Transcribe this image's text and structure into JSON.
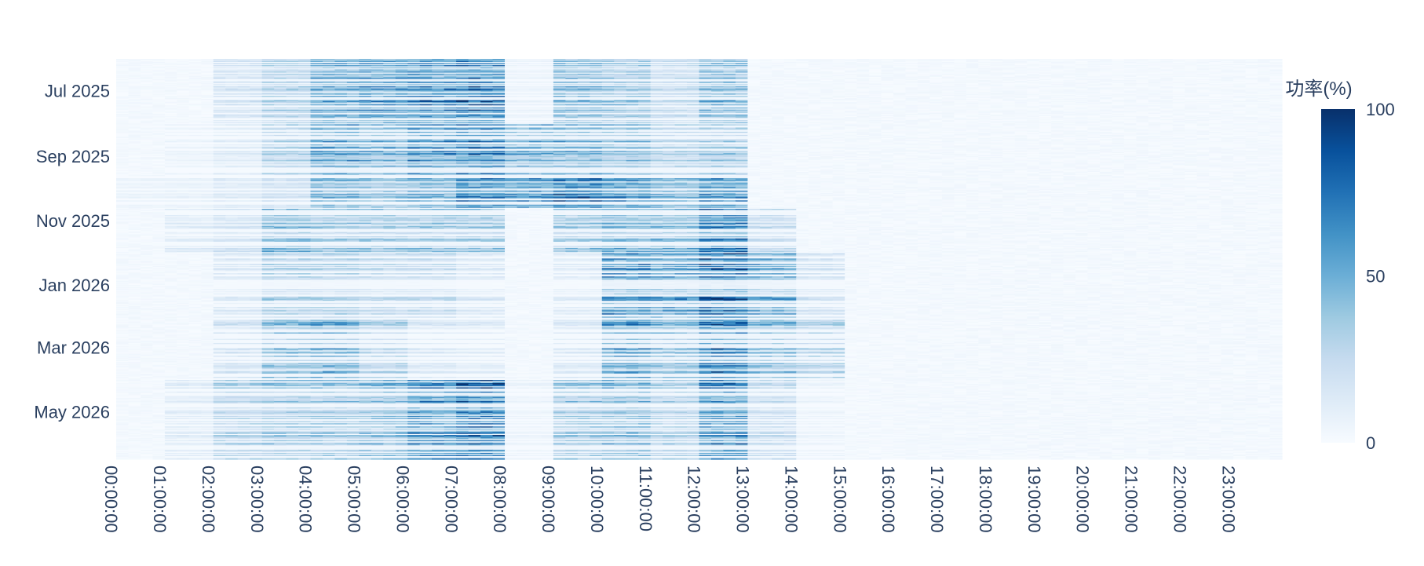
{
  "chart_data": {
    "type": "heatmap",
    "title": "",
    "xlabel": "",
    "ylabel": "",
    "x_ticks": [
      "00:00:00",
      "01:00:00",
      "02:00:00",
      "03:00:00",
      "04:00:00",
      "05:00:00",
      "06:00:00",
      "07:00:00",
      "08:00:00",
      "09:00:00",
      "10:00:00",
      "11:00:00",
      "12:00:00",
      "13:00:00",
      "14:00:00",
      "15:00:00",
      "16:00:00",
      "17:00:00",
      "18:00:00",
      "19:00:00",
      "20:00:00",
      "21:00:00",
      "22:00:00",
      "23:00:00"
    ],
    "x_range": [
      "00:00:00",
      "24:00:00"
    ],
    "y_ticks": [
      {
        "label": "Jul 2025",
        "date": "2025-07-01"
      },
      {
        "label": "Sep 2025",
        "date": "2025-09-01"
      },
      {
        "label": "Nov 2025",
        "date": "2025-11-01"
      },
      {
        "label": "Jan 2026",
        "date": "2026-01-01"
      },
      {
        "label": "Mar 2026",
        "date": "2026-03-01"
      },
      {
        "label": "May 2026",
        "date": "2026-05-01"
      }
    ],
    "y_range": [
      "2026-06-15",
      "2025-06-01"
    ],
    "colorbar": {
      "title": "功率(%)",
      "ticks": [
        "0",
        "50",
        "100"
      ],
      "min": 0,
      "max": 100,
      "colorscale": [
        "#f7fbff",
        "#deebf7",
        "#c6dbef",
        "#9ecae1",
        "#6baed6",
        "#4292c6",
        "#2171b5",
        "#08519c",
        "#08306b"
      ]
    },
    "grid": false,
    "profile": {
      "description_note_free": true,
      "periods": [
        {
          "start": "2025-06-01",
          "end": "2025-08-01",
          "hourly_mean": [
            3,
            4,
            15,
            25,
            40,
            45,
            50,
            55,
            5,
            35,
            30,
            20,
            35,
            3,
            2,
            1,
            1,
            1,
            1,
            1,
            1,
            1,
            1,
            2
          ]
        },
        {
          "start": "2025-08-01",
          "end": "2025-09-20",
          "hourly_mean": [
            4,
            5,
            10,
            25,
            45,
            40,
            50,
            55,
            40,
            40,
            35,
            25,
            30,
            4,
            2,
            1,
            1,
            1,
            1,
            1,
            1,
            1,
            2,
            3
          ]
        },
        {
          "start": "2025-09-20",
          "end": "2025-10-20",
          "hourly_mean": [
            5,
            6,
            10,
            15,
            35,
            30,
            35,
            50,
            45,
            55,
            45,
            35,
            45,
            4,
            2,
            1,
            1,
            1,
            1,
            1,
            2,
            3,
            3,
            4
          ]
        },
        {
          "start": "2025-10-20",
          "end": "2025-12-01",
          "hourly_mean": [
            2,
            10,
            15,
            35,
            30,
            30,
            30,
            30,
            4,
            30,
            35,
            35,
            55,
            20,
            2,
            1,
            1,
            1,
            1,
            1,
            1,
            1,
            1,
            2
          ]
        },
        {
          "start": "2025-12-01",
          "end": "2026-02-01",
          "hourly_mean": [
            2,
            3,
            12,
            25,
            25,
            20,
            20,
            12,
            4,
            10,
            50,
            45,
            60,
            40,
            15,
            2,
            1,
            1,
            1,
            1,
            1,
            1,
            1,
            2
          ]
        },
        {
          "start": "2026-02-01",
          "end": "2026-04-01",
          "hourly_mean": [
            2,
            4,
            15,
            35,
            40,
            25,
            12,
            10,
            4,
            12,
            45,
            35,
            55,
            35,
            25,
            3,
            1,
            1,
            1,
            1,
            1,
            1,
            1,
            2
          ]
        },
        {
          "start": "2026-04-01",
          "end": "2026-06-15",
          "hourly_mean": [
            2,
            10,
            25,
            30,
            30,
            35,
            50,
            60,
            5,
            30,
            35,
            25,
            50,
            20,
            5,
            1,
            1,
            1,
            1,
            1,
            1,
            1,
            1,
            2
          ]
        }
      ]
    }
  }
}
